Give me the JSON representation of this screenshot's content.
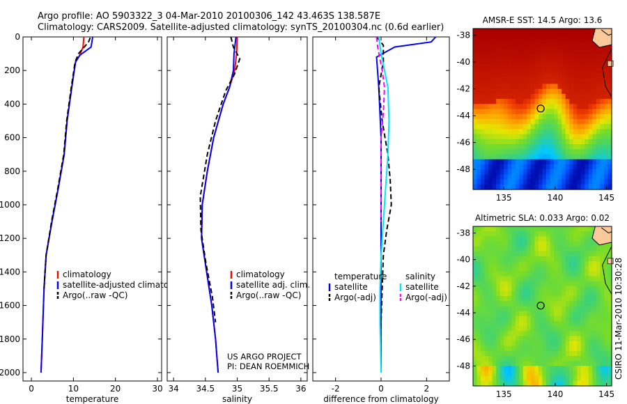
{
  "header": {
    "line1": "Argo profile: AO 5903322_3 04-Mar-2010 20100306_142 43.463S 138.587E",
    "line2": "Climatology: CARS2009. Satellite-adjusted climatology: synTS_20100304.nc (0.6d earlier)"
  },
  "footer": {
    "project": "US ARGO PROJECT",
    "pi": "PI: DEAN ROEMMICH",
    "credit": "CSIRO 11-Mar-2010 10:30:28"
  },
  "colors": {
    "climatology": "#ff0000",
    "satellite": "#0000ff",
    "argo": "#000000",
    "satellite_salinity": "#00e5ff",
    "argo_salinity": "#ff00ff"
  },
  "chart_data": [
    {
      "type": "line",
      "xlabel": "temperature",
      "ylabel": "",
      "xlim": [
        -2,
        31
      ],
      "ylim": [
        2050,
        0
      ],
      "xticks": [
        0,
        10,
        20,
        30
      ],
      "yticks": [
        0,
        200,
        400,
        600,
        800,
        1000,
        1200,
        1400,
        1600,
        1800,
        2000
      ],
      "legend": [
        "climatology",
        "satellite-adjusted climatology",
        "Argo(..raw -QC)"
      ],
      "legend_position": "lower-right",
      "series": [
        {
          "name": "climatology",
          "color": "#ff0000",
          "x": [
            12.5,
            12.3,
            11.5,
            10.5,
            9.6,
            8.5,
            7.8,
            6.4,
            4.9,
            3.5,
            3.0,
            2.6,
            2.3
          ],
          "y": [
            0,
            60,
            110,
            150,
            300,
            500,
            700,
            900,
            1100,
            1300,
            1500,
            1800,
            2000
          ]
        },
        {
          "name": "satellite-adjusted climatology",
          "color": "#0000ff",
          "x": [
            14.6,
            14.2,
            11.5,
            10.5,
            9.6,
            8.5,
            7.8,
            6.4,
            4.9,
            3.5,
            3.0,
            2.6,
            2.3
          ],
          "y": [
            0,
            60,
            110,
            150,
            300,
            500,
            700,
            900,
            1100,
            1300,
            1500,
            1800,
            2000
          ]
        },
        {
          "name": "Argo(..raw -QC)",
          "color": "#000000",
          "x": [
            14.0,
            13.6,
            12.6,
            11.2,
            10.4,
            9.5,
            8.4,
            7.7,
            6.3,
            4.8,
            3.5,
            3.0
          ],
          "y": [
            5,
            30,
            60,
            100,
            150,
            300,
            500,
            700,
            900,
            1100,
            1300,
            1500
          ]
        }
      ]
    },
    {
      "type": "line",
      "xlabel": "salinity",
      "ylabel": "",
      "xlim": [
        33.9,
        36.1
      ],
      "ylim": [
        2050,
        0
      ],
      "xticks": [
        34,
        34.5,
        35,
        35.5,
        36
      ],
      "legend": [
        "climatology",
        "satellite adj. clim.",
        "Argo(..raw -QC)"
      ],
      "legend_position": "lower-right",
      "series": [
        {
          "name": "climatology",
          "color": "#ff0000",
          "x": [
            35.0,
            34.99,
            34.96,
            34.88,
            34.78,
            34.63,
            34.53,
            34.45,
            34.44,
            34.52,
            34.6,
            34.66,
            34.7
          ],
          "y": [
            0,
            100,
            200,
            300,
            400,
            600,
            800,
            1000,
            1200,
            1400,
            1600,
            1800,
            2000
          ]
        },
        {
          "name": "satellite adj. clim.",
          "color": "#0000ff",
          "x": [
            34.98,
            34.95,
            34.94,
            34.88,
            34.78,
            34.63,
            34.53,
            34.45,
            34.44,
            34.52,
            34.6,
            34.66,
            34.7
          ],
          "y": [
            0,
            100,
            200,
            300,
            400,
            600,
            800,
            1000,
            1200,
            1400,
            1600,
            1800,
            2000
          ]
        },
        {
          "name": "Argo(..raw -QC)",
          "color": "#000000",
          "x": [
            34.9,
            34.94,
            35.04,
            34.96,
            34.82,
            34.66,
            34.53,
            34.42,
            34.43,
            34.51,
            34.61,
            34.66
          ],
          "y": [
            0,
            60,
            130,
            220,
            320,
            500,
            700,
            950,
            1150,
            1350,
            1550,
            1700
          ]
        }
      ]
    },
    {
      "type": "line",
      "xlabel": "difference from climatology",
      "ylabel": "",
      "xlim": [
        -3,
        3
      ],
      "ylim": [
        2050,
        0
      ],
      "xticks": [
        -2,
        0,
        2
      ],
      "legend": [
        "temperature",
        "satellite",
        "Argo(-adj)",
        "salinity",
        "satellite",
        "Argo(-adj)"
      ],
      "legend_position": "lower-center",
      "series": [
        {
          "name": "satellite",
          "color": "#0000ff",
          "x": [
            2.4,
            2.2,
            0.6,
            -0.2,
            -0.1,
            0,
            0,
            0,
            0
          ],
          "y": [
            0,
            30,
            60,
            120,
            300,
            600,
            1000,
            1500,
            2000
          ]
        },
        {
          "name": "Argo(-adj)",
          "color": "#000000",
          "x": [
            -0.2,
            0.1,
            0.1,
            -0.1,
            0.05,
            0.3,
            0.4,
            0.45,
            0.25,
            0.1,
            0.05,
            0,
            0
          ],
          "y": [
            0,
            50,
            150,
            300,
            500,
            700,
            850,
            1000,
            1150,
            1300,
            1500,
            1700,
            1900
          ]
        },
        {
          "name": "satellite",
          "color": "#00e5ff",
          "x": [
            -0.1,
            0,
            0.3,
            0.35,
            0.3,
            0.2,
            0.1,
            0,
            -0.05,
            -0.05,
            0
          ],
          "y": [
            0,
            100,
            300,
            500,
            700,
            900,
            1100,
            1300,
            1500,
            1700,
            2000
          ]
        },
        {
          "name": "Argo(-adj)",
          "color": "#ff00ff",
          "x": [
            -0.2,
            -0.15,
            0.05,
            0.15,
            0.1,
            0,
            0,
            0
          ],
          "y": [
            0,
            60,
            200,
            300,
            450,
            600,
            900,
            1100
          ]
        }
      ]
    },
    {
      "type": "heatmap",
      "title": "AMSR-E SST: 14.5 Argo: 13.6",
      "xlim": [
        132,
        145.5
      ],
      "ylim": [
        -49.5,
        -37.5
      ],
      "xticks": [
        135,
        140,
        145
      ],
      "yticks": [
        -38,
        -40,
        -42,
        -44,
        -46,
        -48
      ],
      "marker": {
        "lon": 138.587,
        "lat": -43.463
      }
    },
    {
      "type": "heatmap",
      "title": "Altimetric SLA: 0.033 Argo: 0.02",
      "xlim": [
        132,
        145.5
      ],
      "ylim": [
        -49.5,
        -37.5
      ],
      "xticks": [
        135,
        140,
        145
      ],
      "yticks": [
        -38,
        -40,
        -42,
        -44,
        -46,
        -48
      ],
      "marker": {
        "lon": 138.587,
        "lat": -43.463
      }
    }
  ]
}
